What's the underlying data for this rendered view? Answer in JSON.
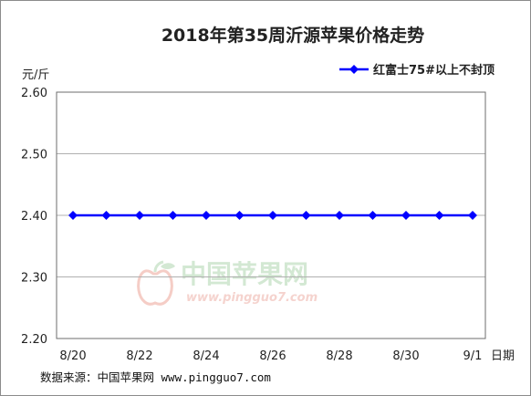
{
  "chart_data": {
    "type": "line",
    "title": "2018年第35周沂源苹果价格走势",
    "ylabel": "元/斤",
    "xlabel": "日期",
    "ylim": [
      2.2,
      2.6
    ],
    "y_ticks": [
      "2.60",
      "2.50",
      "2.40",
      "2.30",
      "2.20"
    ],
    "x_tick_labels": [
      "8/20",
      "8/22",
      "8/24",
      "8/26",
      "8/28",
      "8/30",
      "9/1"
    ],
    "x": [
      "8/20",
      "8/21",
      "8/22",
      "8/23",
      "8/24",
      "8/25",
      "8/26",
      "8/27",
      "8/28",
      "8/29",
      "8/30",
      "8/31",
      "9/1"
    ],
    "series": [
      {
        "name": "红富士75#以上不封顶",
        "values": [
          2.4,
          2.4,
          2.4,
          2.4,
          2.4,
          2.4,
          2.4,
          2.4,
          2.4,
          2.4,
          2.4,
          2.4,
          2.4
        ],
        "color": "#0000ff"
      }
    ],
    "grid": true,
    "legend_position": "top-right"
  },
  "watermark": {
    "text": "中国苹果网",
    "url": "www.pingguo7.com"
  },
  "source": "数据来源：中国苹果网 www.pingguo7.com"
}
